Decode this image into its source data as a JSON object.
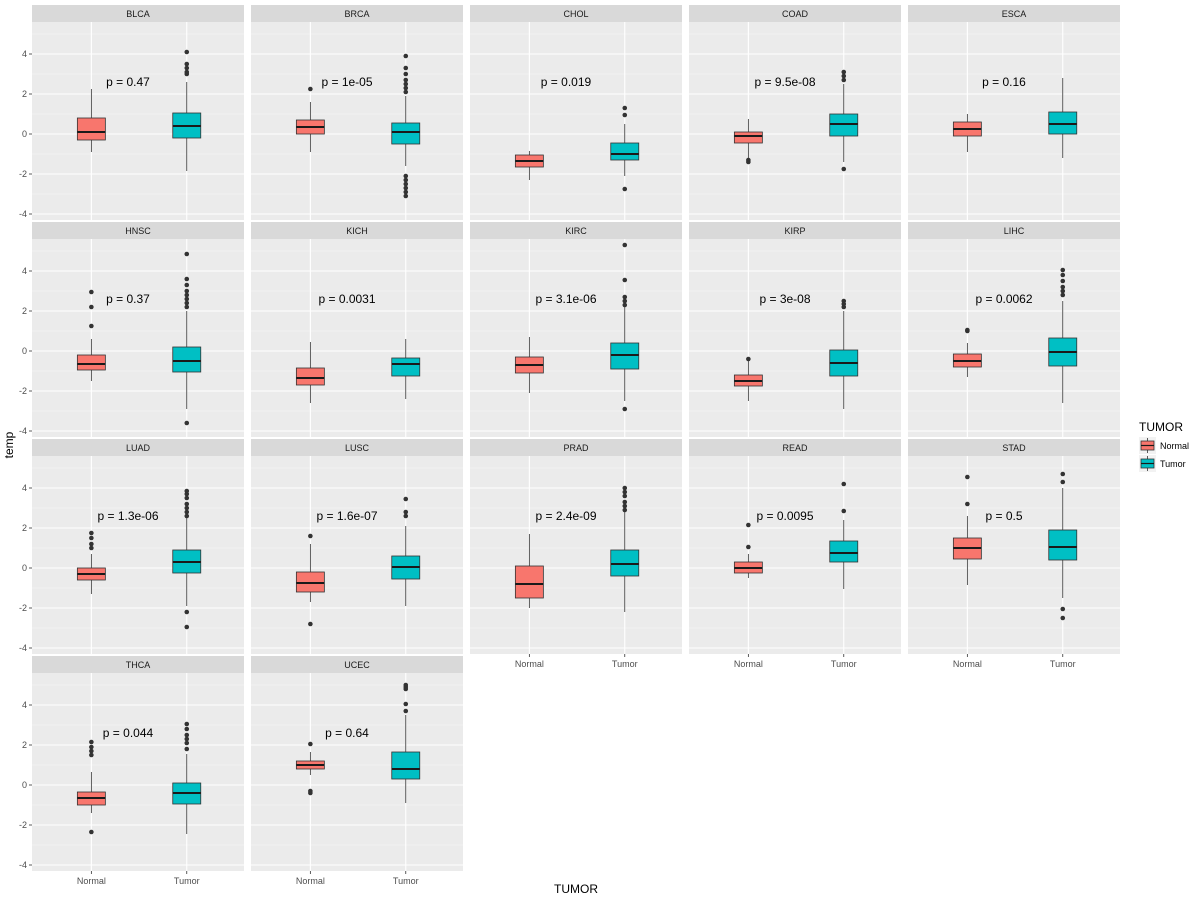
{
  "chart_data": {
    "type": "box",
    "facet_var": "project",
    "x_var": "TUMOR",
    "xlabel": "TUMOR",
    "ylabel": "temp",
    "categories": [
      "Normal",
      "Tumor"
    ],
    "y_ticks": [
      4,
      2,
      0,
      -2,
      -4
    ],
    "ylim": [
      -4.3,
      5.6
    ],
    "legend": {
      "title": "TUMOR",
      "position": "right",
      "entries": [
        {
          "label": "Normal",
          "color": "#F8766D"
        },
        {
          "label": "Tumor",
          "color": "#00BFC4"
        }
      ]
    },
    "panels": [
      {
        "name": "BLCA",
        "pvalue": "p = 0.47",
        "boxes": [
          {
            "group": "Normal",
            "whisker_low": -0.9,
            "q1": -0.3,
            "median": 0.1,
            "q3": 0.8,
            "whisker_high": 2.25,
            "outliers": []
          },
          {
            "group": "Tumor",
            "whisker_low": -1.85,
            "q1": -0.2,
            "median": 0.4,
            "q3": 1.05,
            "whisker_high": 2.6,
            "outliers": [
              3.0,
              3.1,
              3.3,
              3.5,
              4.1
            ]
          }
        ]
      },
      {
        "name": "BRCA",
        "pvalue": "p = 1e-05",
        "boxes": [
          {
            "group": "Normal",
            "whisker_low": -0.9,
            "q1": 0.0,
            "median": 0.35,
            "q3": 0.7,
            "whisker_high": 1.6,
            "outliers": [
              2.25
            ]
          },
          {
            "group": "Tumor",
            "whisker_low": -1.6,
            "q1": -0.5,
            "median": 0.1,
            "q3": 0.55,
            "whisker_high": 1.9,
            "outliers": [
              -3.1,
              -2.9,
              -2.7,
              -2.5,
              -2.3,
              -2.1,
              2.1,
              2.3,
              2.5,
              2.7,
              3.0,
              3.3,
              3.9
            ]
          }
        ]
      },
      {
        "name": "CHOL",
        "pvalue": "p = 0.019",
        "boxes": [
          {
            "group": "Normal",
            "whisker_low": -2.3,
            "q1": -1.65,
            "median": -1.35,
            "q3": -1.05,
            "whisker_high": -0.85,
            "outliers": []
          },
          {
            "group": "Tumor",
            "whisker_low": -2.1,
            "q1": -1.3,
            "median": -1.0,
            "q3": -0.45,
            "whisker_high": 0.5,
            "outliers": [
              -2.75,
              0.95,
              1.3
            ]
          }
        ]
      },
      {
        "name": "COAD",
        "pvalue": "p = 9.5e-08",
        "boxes": [
          {
            "group": "Normal",
            "whisker_low": -1.2,
            "q1": -0.45,
            "median": -0.1,
            "q3": 0.1,
            "whisker_high": 0.75,
            "outliers": [
              -1.4,
              -1.3
            ]
          },
          {
            "group": "Tumor",
            "whisker_low": -1.4,
            "q1": -0.1,
            "median": 0.5,
            "q3": 1.0,
            "whisker_high": 2.5,
            "outliers": [
              -1.75,
              2.7,
              2.9,
              3.1
            ]
          }
        ]
      },
      {
        "name": "ESCA",
        "pvalue": "p = 0.16",
        "boxes": [
          {
            "group": "Normal",
            "whisker_low": -0.9,
            "q1": -0.1,
            "median": 0.25,
            "q3": 0.6,
            "whisker_high": 1.0,
            "outliers": []
          },
          {
            "group": "Tumor",
            "whisker_low": -1.2,
            "q1": 0.0,
            "median": 0.5,
            "q3": 1.1,
            "whisker_high": 2.8,
            "outliers": []
          }
        ]
      },
      {
        "name": "HNSC",
        "pvalue": "p = 0.37",
        "boxes": [
          {
            "group": "Normal",
            "whisker_low": -1.5,
            "q1": -0.95,
            "median": -0.65,
            "q3": -0.2,
            "whisker_high": 0.6,
            "outliers": [
              1.25,
              2.2,
              2.95
            ]
          },
          {
            "group": "Tumor",
            "whisker_low": -2.9,
            "q1": -1.05,
            "median": -0.5,
            "q3": 0.2,
            "whisker_high": 2.0,
            "outliers": [
              -3.6,
              2.2,
              2.4,
              2.6,
              2.8,
              3.0,
              3.3,
              3.6,
              4.85
            ]
          }
        ]
      },
      {
        "name": "KICH",
        "pvalue": "p = 0.0031",
        "boxes": [
          {
            "group": "Normal",
            "whisker_low": -2.6,
            "q1": -1.7,
            "median": -1.35,
            "q3": -0.85,
            "whisker_high": 0.45,
            "outliers": []
          },
          {
            "group": "Tumor",
            "whisker_low": -2.4,
            "q1": -1.25,
            "median": -0.65,
            "q3": -0.35,
            "whisker_high": 0.6,
            "outliers": []
          }
        ]
      },
      {
        "name": "KIRC",
        "pvalue": "p = 3.1e-06",
        "boxes": [
          {
            "group": "Normal",
            "whisker_low": -2.1,
            "q1": -1.1,
            "median": -0.7,
            "q3": -0.3,
            "whisker_high": 0.7,
            "outliers": []
          },
          {
            "group": "Tumor",
            "whisker_low": -2.5,
            "q1": -0.9,
            "median": -0.2,
            "q3": 0.4,
            "whisker_high": 2.2,
            "outliers": [
              -2.9,
              2.3,
              2.5,
              2.7,
              3.55,
              5.3
            ]
          }
        ]
      },
      {
        "name": "KIRP",
        "pvalue": "p = 3e-08",
        "boxes": [
          {
            "group": "Normal",
            "whisker_low": -2.5,
            "q1": -1.75,
            "median": -1.5,
            "q3": -1.2,
            "whisker_high": -0.5,
            "outliers": [
              -0.4
            ]
          },
          {
            "group": "Tumor",
            "whisker_low": -2.9,
            "q1": -1.25,
            "median": -0.6,
            "q3": 0.05,
            "whisker_high": 2.0,
            "outliers": [
              2.2,
              2.35,
              2.5
            ]
          }
        ]
      },
      {
        "name": "LIHC",
        "pvalue": "p = 0.0062",
        "boxes": [
          {
            "group": "Normal",
            "whisker_low": -1.3,
            "q1": -0.8,
            "median": -0.5,
            "q3": -0.15,
            "whisker_high": 0.4,
            "outliers": [
              1.0,
              1.05
            ]
          },
          {
            "group": "Tumor",
            "whisker_low": -2.6,
            "q1": -0.75,
            "median": -0.05,
            "q3": 0.65,
            "whisker_high": 2.5,
            "outliers": [
              2.8,
              3.0,
              3.2,
              3.5,
              3.8,
              4.05
            ]
          }
        ]
      },
      {
        "name": "LUAD",
        "pvalue": "p = 1.3e-06",
        "boxes": [
          {
            "group": "Normal",
            "whisker_low": -1.3,
            "q1": -0.6,
            "median": -0.3,
            "q3": 0.0,
            "whisker_high": 0.7,
            "outliers": [
              1.0,
              1.2,
              1.5,
              1.75
            ]
          },
          {
            "group": "Tumor",
            "whisker_low": -1.9,
            "q1": -0.25,
            "median": 0.3,
            "q3": 0.9,
            "whisker_high": 2.5,
            "outliers": [
              -2.95,
              -2.2,
              2.6,
              2.8,
              3.0,
              3.2,
              3.5,
              3.7,
              3.85
            ]
          }
        ]
      },
      {
        "name": "LUSC",
        "pvalue": "p = 1.6e-07",
        "boxes": [
          {
            "group": "Normal",
            "whisker_low": -1.7,
            "q1": -1.2,
            "median": -0.75,
            "q3": -0.2,
            "whisker_high": 1.2,
            "outliers": [
              -2.8,
              1.6
            ]
          },
          {
            "group": "Tumor",
            "whisker_low": -1.9,
            "q1": -0.55,
            "median": 0.05,
            "q3": 0.6,
            "whisker_high": 2.1,
            "outliers": [
              2.6,
              2.8,
              3.45
            ]
          }
        ]
      },
      {
        "name": "PRAD",
        "pvalue": "p = 2.4e-09",
        "boxes": [
          {
            "group": "Normal",
            "whisker_low": -2.0,
            "q1": -1.5,
            "median": -0.8,
            "q3": 0.1,
            "whisker_high": 1.7,
            "outliers": []
          },
          {
            "group": "Tumor",
            "whisker_low": -2.2,
            "q1": -0.4,
            "median": 0.2,
            "q3": 0.9,
            "whisker_high": 2.8,
            "outliers": [
              2.9,
              3.1,
              3.3,
              3.6,
              3.8,
              4.0
            ]
          }
        ]
      },
      {
        "name": "READ",
        "pvalue": "p = 0.0095",
        "boxes": [
          {
            "group": "Normal",
            "whisker_low": -0.5,
            "q1": -0.25,
            "median": 0.0,
            "q3": 0.3,
            "whisker_high": 0.7,
            "outliers": [
              1.05,
              2.15
            ]
          },
          {
            "group": "Tumor",
            "whisker_low": -1.05,
            "q1": 0.3,
            "median": 0.75,
            "q3": 1.35,
            "whisker_high": 2.4,
            "outliers": [
              2.85,
              4.2
            ]
          }
        ]
      },
      {
        "name": "STAD",
        "pvalue": "p = 0.5",
        "boxes": [
          {
            "group": "Normal",
            "whisker_low": -0.85,
            "q1": 0.45,
            "median": 1.0,
            "q3": 1.5,
            "whisker_high": 2.6,
            "outliers": [
              3.2,
              4.55
            ]
          },
          {
            "group": "Tumor",
            "whisker_low": -1.5,
            "q1": 0.4,
            "median": 1.05,
            "q3": 1.9,
            "whisker_high": 4.0,
            "outliers": [
              -2.5,
              -2.05,
              4.3,
              4.7
            ]
          }
        ]
      },
      {
        "name": "THCA",
        "pvalue": "p = 0.044",
        "boxes": [
          {
            "group": "Normal",
            "whisker_low": -1.4,
            "q1": -1.0,
            "median": -0.65,
            "q3": -0.35,
            "whisker_high": 0.65,
            "outliers": [
              -2.35,
              1.5,
              1.7,
              1.9,
              2.15
            ]
          },
          {
            "group": "Tumor",
            "whisker_low": -2.45,
            "q1": -0.95,
            "median": -0.4,
            "q3": 0.1,
            "whisker_high": 1.55,
            "outliers": [
              1.8,
              2.1,
              2.3,
              2.5,
              2.8,
              3.05
            ]
          }
        ]
      },
      {
        "name": "UCEC",
        "pvalue": "p = 0.64",
        "boxes": [
          {
            "group": "Normal",
            "whisker_low": 0.5,
            "q1": 0.8,
            "median": 1.0,
            "q3": 1.2,
            "whisker_high": 1.65,
            "outliers": [
              -0.4,
              -0.3,
              2.05
            ]
          },
          {
            "group": "Tumor",
            "whisker_low": -0.9,
            "q1": 0.3,
            "median": 0.8,
            "q3": 1.65,
            "whisker_high": 3.5,
            "outliers": [
              3.7,
              4.05,
              4.8,
              4.9,
              5.0
            ]
          }
        ]
      }
    ]
  }
}
